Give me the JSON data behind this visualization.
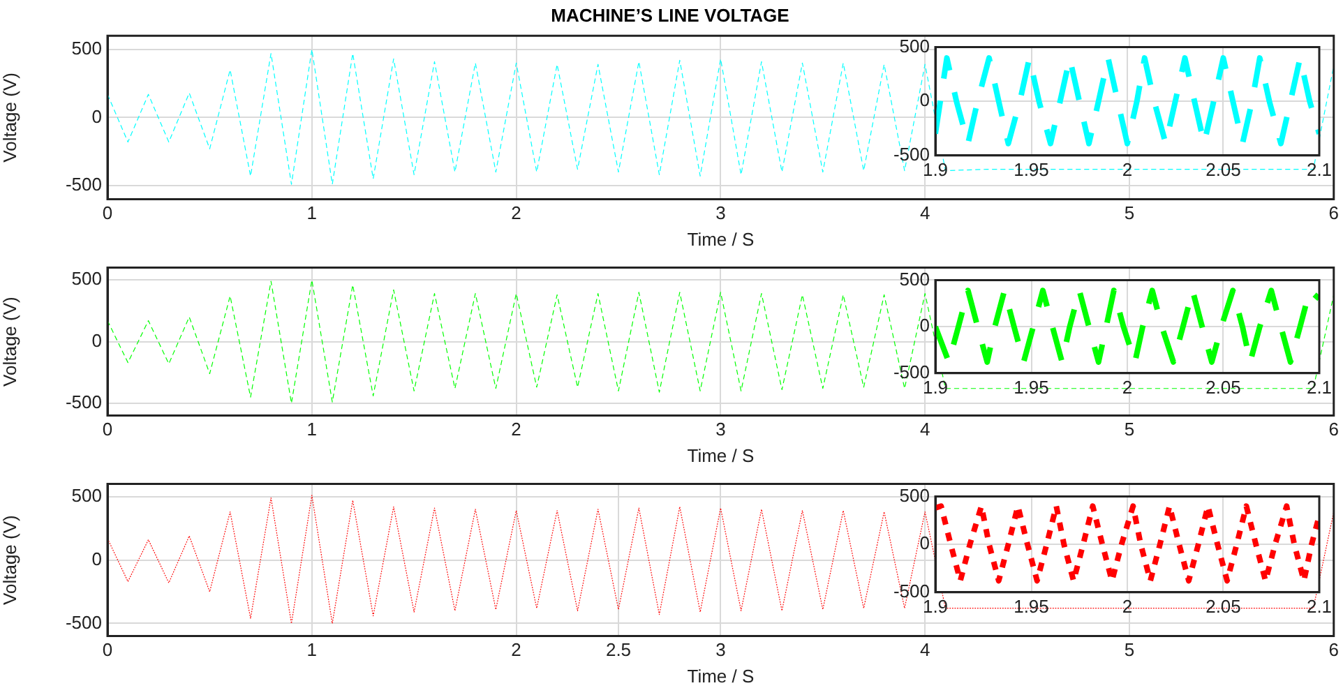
{
  "chart_data": [
    {
      "type": "line",
      "title": "MACHINE’S LINE VOLTAGE",
      "xlabel": "Time / S",
      "ylabel": "Voltage (V)",
      "x": [
        0,
        0.1,
        0.2,
        0.3,
        0.4,
        0.5,
        0.6,
        0.7,
        0.8,
        0.9,
        1,
        1.1,
        1.2,
        1.3,
        1.4,
        1.5,
        1.6,
        1.7,
        1.8,
        1.9,
        2,
        2.1,
        2.2,
        2.3,
        2.4,
        2.5,
        2.6,
        2.7,
        2.8,
        2.9,
        3,
        3.1,
        3.2,
        3.3,
        3.4,
        3.5,
        3.6,
        3.7,
        3.8,
        3.9,
        4,
        4.1,
        4.2,
        4.3,
        4.4,
        4.5,
        4.6,
        4.7,
        4.8,
        4.9,
        5,
        5.1,
        5.2,
        5.3,
        5.4,
        5.5,
        5.6,
        5.7,
        5.8,
        5.9,
        6
      ],
      "series": [
        {
          "color": "#00ffff",
          "values": [
            170,
            -180,
            170,
            -180,
            180,
            -230,
            350,
            -430,
            470,
            -490,
            500,
            -490,
            470,
            -450,
            430,
            -420,
            410,
            -400,
            400,
            -400,
            400,
            -400,
            390,
            -380,
            390,
            -400,
            410,
            -420,
            420,
            -430,
            430,
            -420,
            410,
            -400,
            400,
            -400,
            400,
            -390,
            390,
            -390,
            390,
            -390,
            null,
            -380,
            null,
            -380,
            null,
            -380,
            null,
            -380,
            null,
            -380,
            null,
            -380,
            null,
            -380,
            null,
            -380,
            null,
            -380,
            380
          ]
        }
      ],
      "xlim": [
        0,
        6
      ],
      "xticks": [
        0,
        1,
        2,
        3,
        4,
        5,
        6
      ],
      "ylim": [
        -600,
        600
      ],
      "yticks": [
        -500,
        0,
        500
      ],
      "grid": true,
      "line_style": "dashed"
    },
    {
      "type": "line",
      "x": [
        1.9,
        1.906,
        1.911,
        1.917,
        1.922,
        1.928,
        1.933,
        1.938,
        1.944,
        1.949,
        1.954,
        1.96,
        1.965,
        1.97,
        1.975,
        1.98,
        1.985,
        1.99,
        1.995,
        2,
        2.005,
        2.009,
        2.014,
        2.02,
        2.025,
        2.03,
        2.035,
        2.04,
        2.045,
        2.05,
        2.055,
        2.06,
        2.065,
        2.069,
        2.074,
        2.08,
        2.085,
        2.09,
        2.095,
        2.1
      ],
      "series": [
        {
          "color": "#00ffff",
          "values": [
            -300,
            400,
            0,
            -390,
            0,
            400,
            0,
            -390,
            0,
            400,
            0,
            -390,
            0,
            400,
            0,
            -390,
            0,
            400,
            0,
            -390,
            0,
            400,
            0,
            -390,
            0,
            400,
            0,
            -390,
            0,
            400,
            0,
            -390,
            0,
            400,
            0,
            -390,
            0,
            400,
            0,
            -300
          ]
        }
      ],
      "xlim": [
        1.9,
        2.1
      ],
      "xticks": [
        1.9,
        1.95,
        2,
        2.05,
        2.1
      ],
      "ylim": [
        -500,
        500
      ],
      "yticks": [
        -500,
        0,
        500
      ],
      "grid": true,
      "line_style": "dashed"
    },
    {
      "type": "line",
      "xlabel": "Time / S",
      "ylabel": "Voltage (V)",
      "x": [
        0,
        0.1,
        0.2,
        0.3,
        0.4,
        0.5,
        0.6,
        0.7,
        0.8,
        0.9,
        1,
        1.1,
        1.2,
        1.3,
        1.4,
        1.5,
        1.6,
        1.7,
        1.8,
        1.9,
        2,
        2.1,
        2.2,
        2.3,
        2.4,
        2.5,
        2.6,
        2.7,
        2.8,
        2.9,
        3,
        3.1,
        3.2,
        3.3,
        3.4,
        3.5,
        3.6,
        3.7,
        3.8,
        3.9,
        4,
        4.1,
        4.2,
        4.3,
        4.4,
        4.5,
        4.6,
        4.7,
        4.8,
        4.9,
        5,
        5.1,
        5.2,
        5.3,
        5.4,
        5.5,
        5.6,
        5.7,
        5.8,
        5.9,
        6
      ],
      "series": [
        {
          "color": "#00ff00",
          "values": [
            170,
            -170,
            170,
            -180,
            200,
            -260,
            370,
            -450,
            490,
            -500,
            500,
            -490,
            460,
            -440,
            420,
            -400,
            390,
            -380,
            390,
            -380,
            390,
            -370,
            380,
            -370,
            390,
            -400,
            400,
            -410,
            400,
            -400,
            400,
            -400,
            390,
            -390,
            380,
            -380,
            380,
            -370,
            380,
            -380,
            390,
            -380,
            null,
            -380,
            null,
            -380,
            null,
            -380,
            null,
            -380,
            null,
            -380,
            null,
            -380,
            null,
            -380,
            null,
            -380,
            null,
            -380,
            380
          ]
        }
      ],
      "xlim": [
        0,
        6
      ],
      "xticks": [
        0,
        1,
        2,
        3,
        4,
        5,
        6
      ],
      "ylim": [
        -600,
        600
      ],
      "yticks": [
        -500,
        0,
        500
      ],
      "grid": true,
      "line_style": "dashed"
    },
    {
      "type": "line",
      "x": [
        1.9,
        1.907,
        1.912,
        1.917,
        1.922,
        1.927,
        1.931,
        1.936,
        1.941,
        1.946,
        1.951,
        1.956,
        1.961,
        1.966,
        1.97,
        1.975,
        1.98,
        1.985,
        1.989,
        1.993,
        1.998,
        2.004,
        2.008,
        2.013,
        2.018,
        2.024,
        2.029,
        2.034,
        2.039,
        2.044,
        2.049,
        2.055,
        2.06,
        2.064,
        2.069,
        2.075,
        2.08,
        2.085,
        2.09,
        2.095,
        2.1
      ],
      "series": [
        {
          "color": "#00ff00",
          "values": [
            0,
            -380,
            0,
            390,
            0,
            -380,
            0,
            390,
            0,
            -380,
            0,
            390,
            0,
            -380,
            0,
            390,
            0,
            -380,
            0,
            390,
            0,
            -380,
            0,
            390,
            0,
            -380,
            0,
            390,
            0,
            -380,
            0,
            390,
            0,
            -380,
            0,
            390,
            0,
            -380,
            0,
            390,
            300
          ]
        }
      ],
      "xlim": [
        1.9,
        2.1
      ],
      "xticks": [
        1.9,
        1.95,
        2,
        2.05,
        2.1
      ],
      "ylim": [
        -500,
        500
      ],
      "yticks": [
        -500,
        0,
        500
      ],
      "grid": true,
      "line_style": "dashed"
    },
    {
      "type": "line",
      "xlabel": "Time / S",
      "ylabel": "Voltage (V)",
      "x": [
        0,
        0.1,
        0.2,
        0.3,
        0.4,
        0.5,
        0.6,
        0.7,
        0.8,
        0.9,
        1,
        1.1,
        1.2,
        1.3,
        1.4,
        1.5,
        1.6,
        1.7,
        1.8,
        1.9,
        2,
        2.1,
        2.2,
        2.3,
        2.4,
        2.5,
        2.6,
        2.7,
        2.8,
        2.9,
        3,
        3.1,
        3.2,
        3.3,
        3.4,
        3.5,
        3.6,
        3.7,
        3.8,
        3.9,
        4,
        4.1,
        4.2,
        4.3,
        4.4,
        4.5,
        4.6,
        4.7,
        4.8,
        4.9,
        5,
        5.1,
        5.2,
        5.3,
        5.4,
        5.5,
        5.6,
        5.7,
        5.8,
        5.9,
        6
      ],
      "series": [
        {
          "color": "#ff0000",
          "values": [
            170,
            -170,
            160,
            -180,
            190,
            -250,
            380,
            -460,
            490,
            -500,
            510,
            -500,
            470,
            -440,
            420,
            -410,
            410,
            -400,
            400,
            -390,
            390,
            -380,
            390,
            -400,
            400,
            -390,
            410,
            -430,
            420,
            -410,
            410,
            -400,
            400,
            -400,
            390,
            -390,
            390,
            -380,
            380,
            -380,
            380,
            -380,
            null,
            -380,
            null,
            -380,
            null,
            -380,
            null,
            -380,
            null,
            -380,
            null,
            -380,
            null,
            -380,
            null,
            -380,
            null,
            -380,
            380
          ]
        }
      ],
      "xlim": [
        0,
        6
      ],
      "xticks": [
        0,
        1,
        2,
        2.5,
        3,
        4,
        5,
        6
      ],
      "ylim": [
        -600,
        600
      ],
      "yticks": [
        -500,
        0,
        500
      ],
      "grid": true,
      "line_style": "dotted"
    },
    {
      "type": "line",
      "x": [
        1.9,
        1.903,
        1.908,
        1.913,
        1.918,
        1.924,
        1.928,
        1.933,
        1.938,
        1.943,
        1.948,
        1.953,
        1.958,
        1.963,
        1.967,
        1.972,
        1.977,
        1.982,
        1.987,
        1.992,
        1.997,
        2.003,
        2.007,
        2.012,
        2.017,
        2.022,
        2.027,
        2.032,
        2.037,
        2.042,
        2.047,
        2.052,
        2.057,
        2.062,
        2.067,
        2.072,
        2.077,
        2.083,
        2.087,
        2.092,
        2.096,
        2.1
      ],
      "series": [
        {
          "color": "#ff0000",
          "values": [
            380,
            400,
            0,
            -380,
            0,
            400,
            0,
            -380,
            0,
            400,
            0,
            -380,
            0,
            400,
            0,
            -380,
            0,
            400,
            0,
            -380,
            0,
            400,
            0,
            -380,
            0,
            400,
            0,
            -380,
            0,
            400,
            0,
            -380,
            0,
            400,
            0,
            -380,
            0,
            400,
            0,
            -380,
            0,
            300
          ]
        }
      ],
      "xlim": [
        1.9,
        2.1
      ],
      "xticks": [
        1.9,
        1.95,
        2,
        2.05,
        2.1
      ],
      "ylim": [
        -500,
        500
      ],
      "yticks": [
        -500,
        0,
        500
      ],
      "grid": true,
      "line_style": "dotted"
    }
  ]
}
